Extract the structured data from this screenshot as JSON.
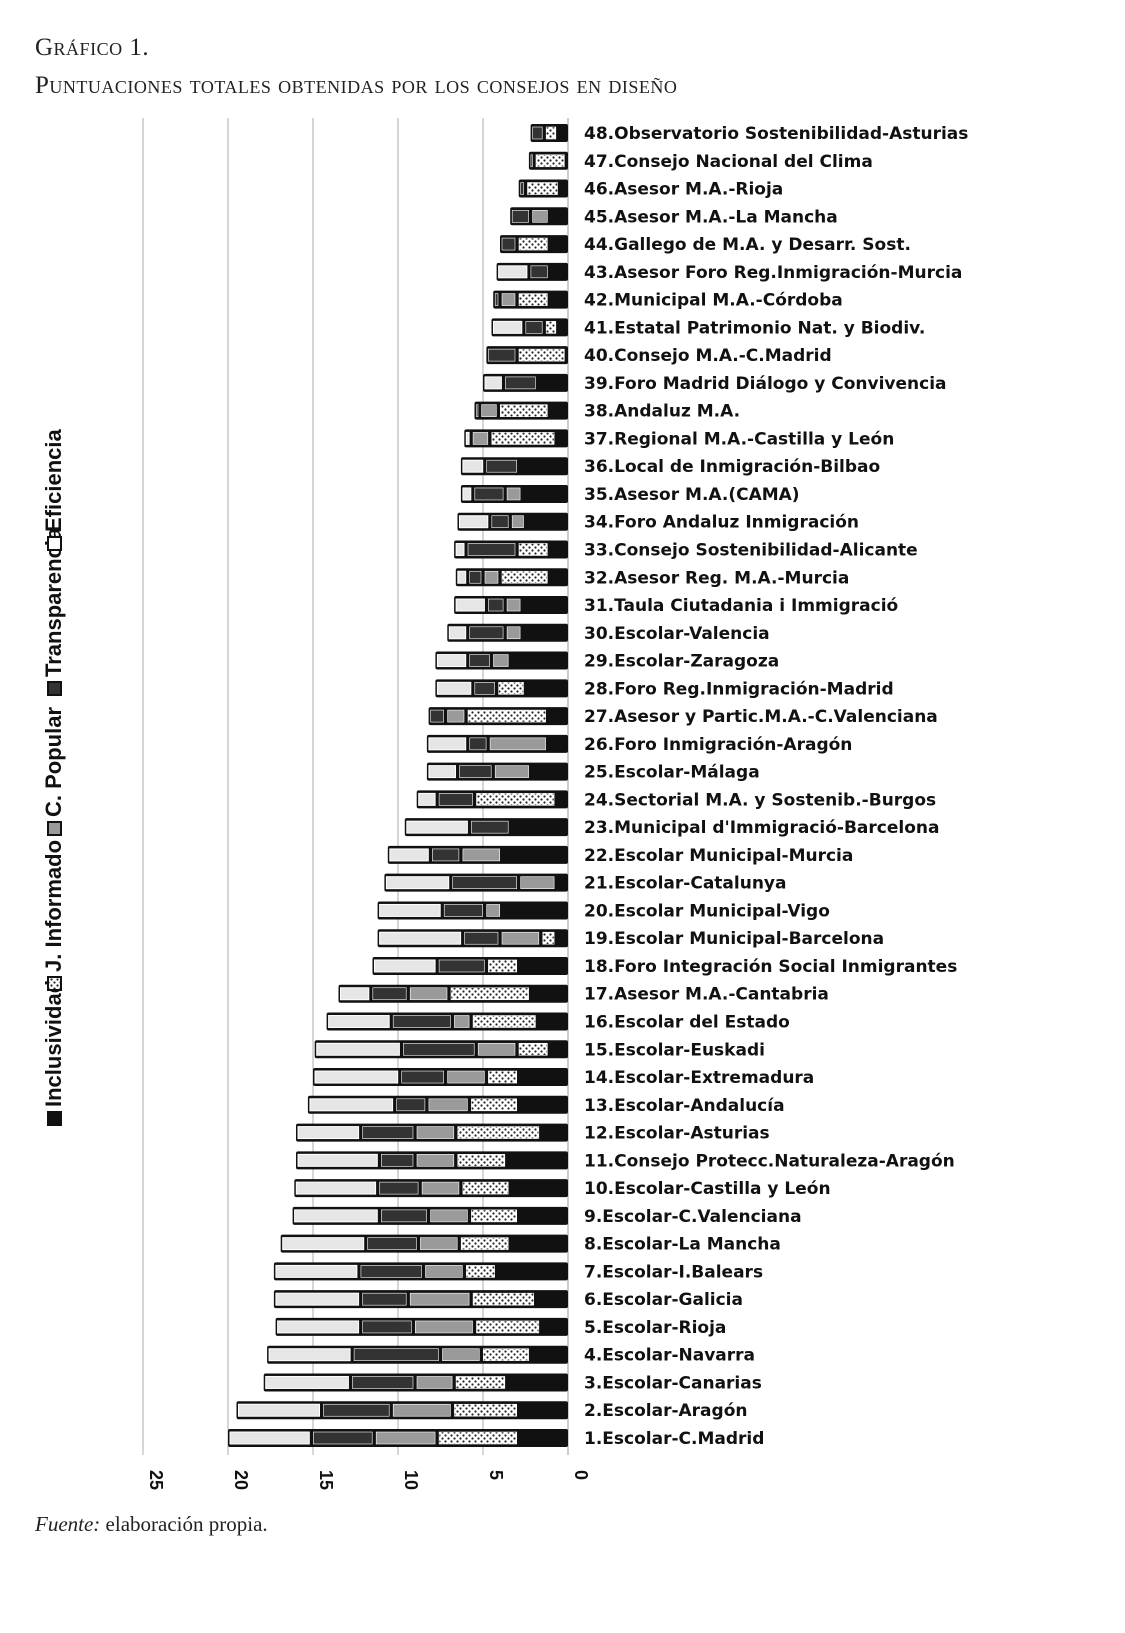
{
  "title": "Gráfico 1.",
  "subtitle": "Puntuaciones totales obtenidas por los consejos en diseño",
  "source_label": "Fuente:",
  "source_text": " elaboración propia.",
  "chart_data": {
    "type": "bar",
    "orientation": "horizontal-stacked",
    "title": "Puntuaciones totales obtenidas por los consejos en diseño",
    "xlim": [
      0,
      25
    ],
    "xticks": [
      "0",
      "5",
      "10",
      "15",
      "20",
      "25"
    ],
    "grid": true,
    "legend_placement": "left, vertical",
    "legend": [
      "Inclusividad",
      "J. Informado",
      "C. Popular",
      "Transparencia",
      "Eficiencia"
    ],
    "series_order": [
      "Inclusividad",
      "J. Informado",
      "C. Popular",
      "Transparencia",
      "Eficiencia"
    ],
    "categories": [
      "1.Escolar-C.Madrid",
      "2.Escolar-Aragón",
      "3.Escolar-Canarias",
      "4.Escolar-Navarra",
      "5.Escolar-Rioja",
      "6.Escolar-Galicia",
      "7.Escolar-I.Balears",
      "8.Escolar-La Mancha",
      "9.Escolar-C.Valenciana",
      "10.Escolar-Castilla y León",
      "11.Consejo Protecc.Naturaleza-Aragón",
      "12.Escolar-Asturias",
      "13.Escolar-Andalucía",
      "14.Escolar-Extremadura",
      "15.Escolar-Euskadi",
      "16.Escolar del Estado",
      "17.Asesor M.A.-Cantabria",
      "18.Foro Integración Social Inmigrantes",
      "19.Escolar Municipal-Barcelona",
      "20.Escolar Municipal-Vigo",
      "21.Escolar-Catalunya",
      "22.Escolar Municipal-Murcia",
      "23.Municipal d'Immigració-Barcelona",
      "24.Sectorial M.A. y Sostenib.-Burgos",
      "25.Escolar-Málaga",
      "26.Foro Inmigración-Aragón",
      "27.Asesor y Partic.M.A.-C.Valenciana",
      "28.Foro Reg.Inmigración-Madrid",
      "29.Escolar-Zaragoza",
      "30.Escolar-Valencia",
      "31.Taula Ciutadania i Immigració",
      "32.Asesor Reg. M.A.-Murcia",
      "33.Consejo Sostenibilidad-Alicante",
      "34.Foro Andaluz Inmigración",
      "35.Asesor M.A.(CAMA)",
      "36.Local de Inmigración-Bilbao",
      "37.Regional M.A.-Castilla y León",
      "38.Andaluz M.A.",
      "39.Foro Madrid Diálogo y Convivencia",
      "40.Consejo M.A.-C.Madrid",
      "41.Estatal Patrimonio Nat. y Biodiv.",
      "42.Municipal M.A.-Córdoba",
      "43.Asesor Foro Reg.Inmigración-Murcia",
      "44.Gallego de M.A. y Desarr. Sost.",
      "45.Asesor M.A.-La Mancha",
      "46.Asesor M.A.-Rioja",
      "47.Consejo Nacional del Clima",
      "48.Observatorio Sostenibilidad-Asturias"
    ],
    "series": [
      {
        "name": "Inclusividad",
        "values": [
          2.9,
          2.9,
          3.6,
          2.2,
          1.6,
          1.9,
          4.2,
          3.4,
          2.9,
          3.4,
          3.6,
          1.6,
          2.9,
          2.9,
          1.1,
          1.8,
          2.2,
          2.9,
          0.7,
          3.9,
          0.7,
          3.9,
          3.4,
          0.7,
          2.2,
          1.2,
          1.2,
          2.5,
          3.4,
          2.7,
          2.7,
          1.1,
          1.1,
          2.5,
          2.7,
          2.9,
          0.7,
          1.1,
          1.8,
          0.1,
          0.6,
          1.1,
          1.1,
          1.1,
          1.1,
          0.5,
          0.1,
          0.6
        ]
      },
      {
        "name": "J. Informado",
        "values": [
          4.8,
          3.9,
          3.1,
          2.9,
          3.9,
          3.8,
          1.9,
          3.0,
          2.9,
          2.9,
          3.0,
          5.0,
          2.9,
          1.9,
          1.9,
          3.9,
          4.8,
          1.9,
          0.9,
          0,
          0,
          0,
          0,
          4.8,
          0,
          0,
          4.8,
          1.7,
          0,
          0,
          0,
          2.9,
          1.9,
          0,
          0,
          0,
          3.9,
          3.0,
          0,
          2.9,
          0.8,
          1.9,
          0,
          1.9,
          0,
          2.0,
          1.9,
          0.8
        ]
      },
      {
        "name": "C. Popular",
        "values": [
          3.7,
          3.6,
          2.3,
          2.4,
          3.6,
          3.7,
          2.4,
          2.4,
          2.4,
          2.4,
          2.4,
          2.4,
          2.5,
          2.4,
          2.4,
          1.1,
          2.4,
          0,
          2.4,
          1.0,
          2.2,
          2.4,
          0,
          0,
          2.2,
          3.5,
          1.2,
          0,
          1.1,
          1.0,
          1.0,
          1.0,
          0,
          0.9,
          1.0,
          0,
          1.1,
          1.1,
          0,
          0,
          0,
          1.0,
          0,
          0,
          1.1,
          0,
          0,
          0
        ]
      },
      {
        "name": "Transparencia",
        "values": [
          3.7,
          4.1,
          3.8,
          5.2,
          3.1,
          2.8,
          3.8,
          3.1,
          2.9,
          2.5,
          2.1,
          3.2,
          1.9,
          2.7,
          4.4,
          3.6,
          2.2,
          2.9,
          2.2,
          2.5,
          4.0,
          1.8,
          2.4,
          2.2,
          2.1,
          1.2,
          1.0,
          1.4,
          1.4,
          2.2,
          1.1,
          0.9,
          3.0,
          1.2,
          1.9,
          2.0,
          0,
          0.3,
          2.0,
          1.8,
          1.2,
          0.4,
          1.2,
          1.0,
          1.2,
          0.4,
          0.3,
          0.8
        ]
      },
      {
        "name": "Eficiencia",
        "values": [
          4.9,
          5.0,
          5.1,
          5.0,
          5.0,
          5.1,
          5.0,
          5.0,
          5.1,
          4.9,
          4.9,
          3.8,
          5.1,
          5.1,
          5.1,
          3.8,
          1.9,
          3.8,
          5.0,
          3.8,
          3.9,
          2.5,
          3.8,
          1.2,
          1.8,
          2.4,
          0,
          2.2,
          1.9,
          1.2,
          1.9,
          0.7,
          0.7,
          1.9,
          0.7,
          1.4,
          0.4,
          0,
          1.2,
          0,
          1.9,
          0,
          1.9,
          0,
          0,
          0,
          0,
          0
        ]
      }
    ],
    "colors": {
      "Inclusividad": "#111111",
      "J. Informado": "#ffffff",
      "C. Popular": "#9a9a9a",
      "Transparencia": "#333333",
      "Eficiencia": "#e6e6e6"
    }
  }
}
